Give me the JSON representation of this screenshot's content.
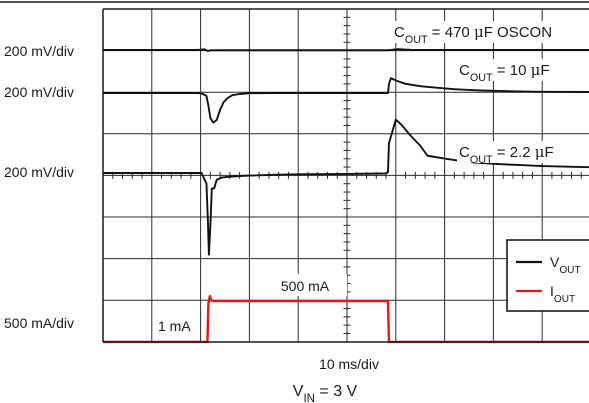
{
  "chart_data": {
    "type": "line",
    "grid": true,
    "x_divisions": 10,
    "y_divisions": 8,
    "xlabel": "10 ms/div",
    "condition": {
      "main": "V",
      "sub": "IN",
      "tail": " = 3 V"
    },
    "channel_scales": [
      {
        "label": "200 mV/div"
      },
      {
        "label": "200 mV/div"
      },
      {
        "label": "200 mV/div"
      },
      {
        "label": "500 mA/div"
      }
    ],
    "trace_labels": [
      {
        "main": "C",
        "sub": "OUT",
        "pre": " = 470 ",
        "mu": "μ",
        "post": "F OSCON"
      },
      {
        "main": "C",
        "sub": "OUT",
        "pre": " = 10 ",
        "mu": "μ",
        "post": "F"
      },
      {
        "main": "C",
        "sub": "OUT",
        "pre": " = 2.2 ",
        "mu": "μ",
        "post": "F"
      }
    ],
    "current_annotations": {
      "low": "1 mA",
      "high": "500 mA"
    },
    "current_levels_mA": {
      "low": 1,
      "high": 500
    },
    "load_step_times_div": {
      "rise": 2.15,
      "fall": 5.85
    },
    "series": [
      {
        "name": "V_OUT (C_OUT = 470 µF OSCON)",
        "x": [
          0,
          1.9,
          2.0,
          2.08,
          2.15,
          2.2,
          2.4,
          5.85,
          5.9,
          5.98,
          6.05,
          6.3,
          6.5,
          7,
          8,
          10
        ],
        "y": [
          0,
          0,
          0.05,
          0.14,
          -0.2,
          -0.07,
          -0.05,
          -0.05,
          0.02,
          0.12,
          0.15,
          0.04,
          0.02,
          0,
          0,
          0
        ]
      },
      {
        "name": "V_OUT (C_OUT = 10 µF)",
        "x": [
          0,
          1.95,
          2.05,
          2.12,
          2.16,
          2.2,
          2.26,
          2.33,
          2.4,
          2.47,
          2.55,
          2.65,
          2.8,
          3.0,
          3.5,
          4.0,
          5.0,
          5.84,
          5.86,
          5.9,
          6.05,
          6.2,
          6.5,
          6.8,
          7.2,
          7.6,
          8.0,
          8.5,
          9.0,
          10
        ],
        "y": [
          0,
          0,
          -0.05,
          -0.15,
          -0.63,
          -1.25,
          -1.48,
          -1.35,
          -0.84,
          -0.47,
          -0.26,
          -0.11,
          -0.05,
          -0.01,
          0,
          0,
          0,
          0,
          0.46,
          0.74,
          0.58,
          0.46,
          0.34,
          0.27,
          0.19,
          0.14,
          0.11,
          0.08,
          0.06,
          0.05
        ]
      },
      {
        "name": "V_OUT (C_OUT = 2.2 µF)",
        "x": [
          0,
          2.02,
          2.12,
          2.15,
          2.17,
          2.2,
          2.23,
          2.28,
          2.33,
          2.43,
          2.6,
          2.9,
          3.5,
          4.0,
          5.0,
          5.8,
          5.84,
          5.86,
          6.0,
          6.12,
          6.3,
          6.5,
          6.65,
          7.0,
          7.5,
          8.0,
          8.5,
          9.0,
          10
        ],
        "y": [
          0,
          0,
          -0.46,
          -2.1,
          -3.55,
          -2.3,
          -0.68,
          -0.66,
          -0.3,
          -0.2,
          -0.16,
          -0.12,
          -0.08,
          -0.06,
          -0.04,
          -0.02,
          0.04,
          1.3,
          2.32,
          2.09,
          1.63,
          1.19,
          0.75,
          0.63,
          0.47,
          0.4,
          0.35,
          0.3,
          0.25
        ]
      },
      {
        "name": "I_OUT",
        "x": [
          0,
          2.14,
          2.16,
          2.19,
          2.22,
          2.3,
          5.84,
          5.86,
          10
        ],
        "y": [
          1,
          1,
          470,
          560,
          505,
          500,
          500,
          1,
          1
        ]
      }
    ],
    "legend": {
      "placement": "bottom-right",
      "entries": [
        {
          "main": "V",
          "sub": "OUT",
          "color": "#111111"
        },
        {
          "main": "I",
          "sub": "OUT",
          "color": "#e0191c"
        }
      ]
    },
    "colors": {
      "voltage": "#111111",
      "current": "#e0191c",
      "grid": "#2a2a2a"
    }
  }
}
